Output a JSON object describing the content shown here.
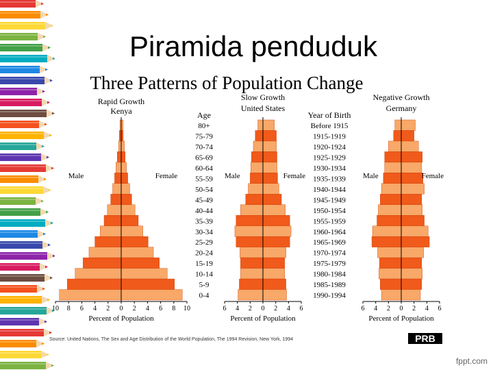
{
  "slide": {
    "title": "Piramida penduduk",
    "watermark": "fppt.com"
  },
  "colors": {
    "bar_dark": "#f05a1a",
    "bar_light": "#f8a868",
    "outline": "#c84008",
    "axis": "#000000"
  },
  "chart_data": {
    "type": "bar",
    "title": "Three Patterns of Population Change",
    "source": "Source: United Nations, The Sex and Age Distribution of the World Population, The 1994 Revision, New York, 1994",
    "publisher_logo": "PRB",
    "age_header": "Age",
    "birth_header": "Year of Birth",
    "age_groups": [
      "80+",
      "75-79",
      "70-74",
      "65-69",
      "60-64",
      "55-59",
      "50-54",
      "45-49",
      "40-44",
      "35-39",
      "30-34",
      "25-29",
      "20-24",
      "15-19",
      "10-14",
      "5-9",
      "0-4"
    ],
    "birth_years": [
      "Before 1915",
      "1915-1919",
      "1920-1924",
      "1925-1929",
      "1930-1934",
      "1935-1939",
      "1940-1944",
      "1945-1949",
      "1950-1954",
      "1955-1959",
      "1960-1964",
      "1965-1969",
      "1970-1974",
      "1975-1979",
      "1980-1984",
      "1985-1989",
      "1990-1994"
    ],
    "panels": [
      {
        "title": "Rapid Growth",
        "country": "Kenya",
        "xlabel": "Percent of Population",
        "ticks_left": [
          "10",
          "8",
          "6",
          "4",
          "2",
          "0"
        ],
        "ticks_right": [
          "2",
          "4",
          "6",
          "8",
          "10"
        ],
        "xlim": [
          -10,
          10
        ],
        "series": [
          {
            "name": "Male",
            "values": [
              0.2,
              0.3,
              0.4,
              0.6,
              0.8,
              1.0,
              1.3,
              1.6,
              2.1,
              2.6,
              3.2,
              4.0,
              4.9,
              5.8,
              7.0,
              8.2,
              9.4
            ]
          },
          {
            "name": "Female",
            "values": [
              0.3,
              0.3,
              0.5,
              0.6,
              0.8,
              1.0,
              1.3,
              1.6,
              2.1,
              2.6,
              3.3,
              4.1,
              4.9,
              5.8,
              7.0,
              8.1,
              9.3
            ]
          }
        ]
      },
      {
        "title": "Slow Growth",
        "country": "United States",
        "xlabel": "Percent of Population",
        "ticks_left": [
          "6",
          "4",
          "2",
          "0"
        ],
        "ticks_right": [
          "2",
          "4",
          "6"
        ],
        "xlim": [
          -6,
          6
        ],
        "series": [
          {
            "name": "Male",
            "values": [
              0.8,
              1.2,
              1.5,
              1.8,
              1.9,
              2.0,
              2.3,
              2.7,
              3.5,
              4.2,
              4.4,
              4.2,
              3.6,
              3.5,
              3.5,
              3.7,
              3.9
            ]
          },
          {
            "name": "Female",
            "values": [
              1.8,
              2.1,
              2.1,
              2.2,
              2.2,
              2.3,
              2.5,
              2.9,
              3.5,
              4.2,
              4.4,
              4.2,
              3.6,
              3.4,
              3.4,
              3.6,
              3.7
            ]
          }
        ]
      },
      {
        "title": "Negative Growth",
        "country": "Germany",
        "xlabel": "Percent of Population",
        "ticks_left": [
          "6",
          "4",
          "2",
          "0"
        ],
        "ticks_right": [
          "2",
          "4",
          "6"
        ],
        "xlim": [
          -6,
          6
        ],
        "series": [
          {
            "name": "Male",
            "values": [
              1.0,
              1.2,
              2.0,
              2.6,
              2.6,
              2.8,
              3.1,
              3.3,
              3.6,
              3.8,
              4.5,
              4.6,
              3.7,
              3.4,
              3.5,
              3.3,
              3.1
            ]
          },
          {
            "name": "Female",
            "values": [
              2.2,
              2.0,
              2.7,
              3.3,
              3.2,
              3.4,
              3.6,
              3.2,
              3.3,
              3.6,
              4.2,
              4.4,
              3.5,
              3.2,
              3.3,
              3.2,
              3.0
            ]
          }
        ]
      }
    ]
  }
}
